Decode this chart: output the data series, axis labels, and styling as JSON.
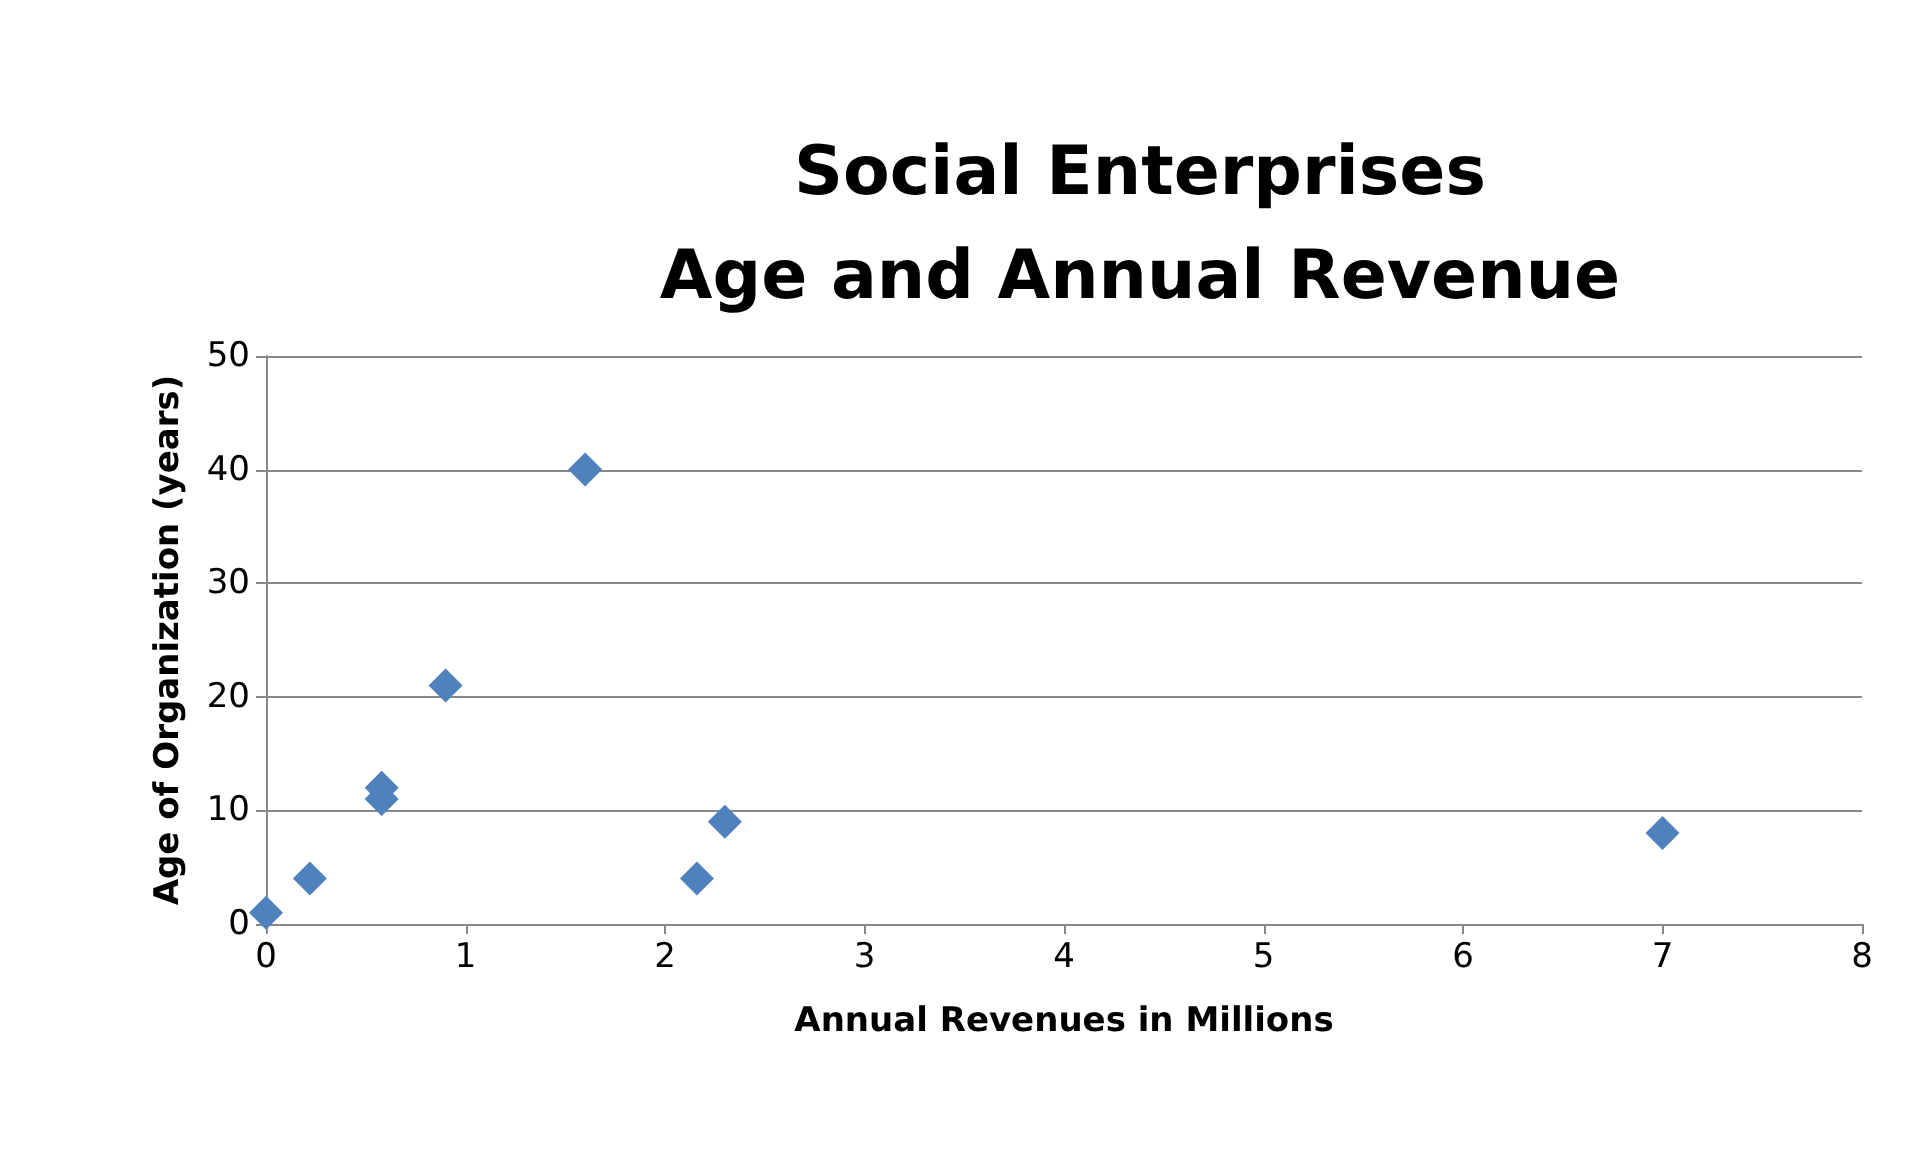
{
  "chart_data": {
    "type": "scatter",
    "title": "Social Enterprises\nAge and Annual Revenue",
    "xlabel": "Annual Revenues in Millions",
    "ylabel": "Age of Organization (years)",
    "x": [
      0,
      0.22,
      0.58,
      0.58,
      0.9,
      1.6,
      2.16,
      2.3,
      7
    ],
    "values": [
      1,
      4,
      12,
      11,
      21,
      40,
      4,
      9,
      8
    ],
    "color": "#4f81bd",
    "marker": "diamond",
    "xlim": [
      0,
      8
    ],
    "xticks": [
      0,
      1,
      2,
      3,
      4,
      5,
      6,
      7,
      8
    ],
    "ylim": [
      0,
      50
    ],
    "yticks": [
      0,
      10,
      20,
      30,
      40,
      50
    ],
    "grid": "y"
  }
}
